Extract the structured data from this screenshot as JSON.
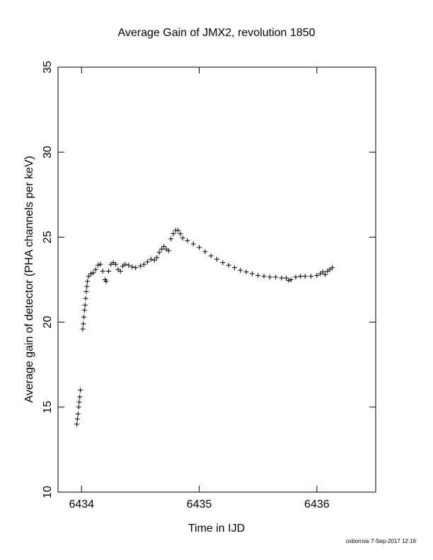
{
  "chart_data": {
    "type": "scatter",
    "title": "Average Gain of JMX2, revolution 1850",
    "xlabel": "Time in IJD",
    "ylabel": "Average gain of detector (PHA channels per keV)",
    "footer": "oxborrow  7-Sep-2017 12:16",
    "color": "#000000",
    "marker": "+",
    "xlim": [
      6433.8,
      6436.5
    ],
    "xticks": [
      6434,
      6435,
      6436
    ],
    "ylim": [
      10,
      35
    ],
    "yticks": [
      10,
      15,
      20,
      25,
      30,
      35
    ],
    "x": [
      6433.96,
      6433.965,
      6433.97,
      6433.975,
      6433.98,
      6433.985,
      6433.99,
      6434.01,
      6434.015,
      6434.02,
      6434.025,
      6434.03,
      6434.035,
      6434.04,
      6434.045,
      6434.05,
      6434.06,
      6434.08,
      6434.1,
      6434.12,
      6434.14,
      6434.16,
      6434.18,
      6434.2,
      6434.21,
      6434.23,
      6434.25,
      6434.27,
      6434.29,
      6434.31,
      6434.33,
      6434.35,
      6434.37,
      6434.4,
      6434.43,
      6434.46,
      6434.5,
      6434.53,
      6434.56,
      6434.59,
      6434.62,
      6434.64,
      6434.66,
      6434.68,
      6434.7,
      6434.72,
      6434.74,
      6434.76,
      6434.78,
      6434.8,
      6434.82,
      6434.84,
      6434.86,
      6434.9,
      6434.95,
      6435.0,
      6435.05,
      6435.1,
      6435.15,
      6435.2,
      6435.25,
      6435.3,
      6435.35,
      6435.4,
      6435.45,
      6435.5,
      6435.55,
      6435.6,
      6435.65,
      6435.7,
      6435.74,
      6435.76,
      6435.78,
      6435.82,
      6435.86,
      6435.9,
      6435.95,
      6436.0,
      6436.03,
      6436.05,
      6436.07,
      6436.09,
      6436.11,
      6436.13
    ],
    "values": [
      14.0,
      14.3,
      14.6,
      15.0,
      15.3,
      15.6,
      16.0,
      19.6,
      19.9,
      20.3,
      20.7,
      21.0,
      21.4,
      21.8,
      22.1,
      22.4,
      22.7,
      22.85,
      22.9,
      23.1,
      23.35,
      23.4,
      23.0,
      22.5,
      22.4,
      23.0,
      23.4,
      23.5,
      23.4,
      23.1,
      23.0,
      23.3,
      23.4,
      23.35,
      23.25,
      23.2,
      23.3,
      23.4,
      23.55,
      23.7,
      23.65,
      23.8,
      24.1,
      24.3,
      24.45,
      24.3,
      24.2,
      24.9,
      25.2,
      25.4,
      25.4,
      25.2,
      24.95,
      24.8,
      24.6,
      24.4,
      24.15,
      23.9,
      23.7,
      23.5,
      23.35,
      23.2,
      23.05,
      22.95,
      22.85,
      22.75,
      22.7,
      22.65,
      22.65,
      22.6,
      22.6,
      22.45,
      22.5,
      22.65,
      22.7,
      22.7,
      22.7,
      22.75,
      22.85,
      22.95,
      22.8,
      23.0,
      23.1,
      23.2
    ]
  }
}
